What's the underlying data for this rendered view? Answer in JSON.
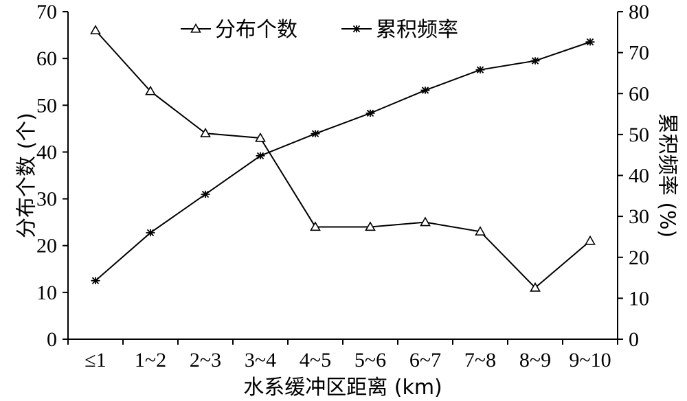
{
  "chart_data": {
    "type": "line",
    "categories": [
      "≤1",
      "1~2",
      "2~3",
      "3~4",
      "4~5",
      "5~6",
      "6~7",
      "7~8",
      "8~9",
      "9~10"
    ],
    "series": [
      {
        "name": "分布个数",
        "axis": "left",
        "marker": "triangle",
        "values": [
          66,
          53,
          44,
          43,
          24,
          24,
          25,
          23,
          11,
          21
        ]
      },
      {
        "name": "累积频率",
        "axis": "right",
        "marker": "asterisk",
        "values": [
          14.3,
          26.0,
          35.4,
          44.8,
          50.2,
          55.2,
          60.8,
          65.8,
          68.0,
          72.6
        ]
      }
    ],
    "xlabel": "水系缓冲区距离 (km)",
    "ylabel_left": "分布个数 (个)",
    "ylabel_right": "累积频率 (%)",
    "ylim_left": [
      0,
      70
    ],
    "ylim_right": [
      0,
      80
    ],
    "yticks_left": [
      "0",
      "10",
      "20",
      "30",
      "40",
      "50",
      "60",
      "70"
    ],
    "yticks_right": [
      "0",
      "10",
      "20",
      "30",
      "40",
      "50",
      "60",
      "70",
      "80"
    ],
    "grid": false,
    "legend_position": "top-center",
    "line_color": "#000000"
  }
}
